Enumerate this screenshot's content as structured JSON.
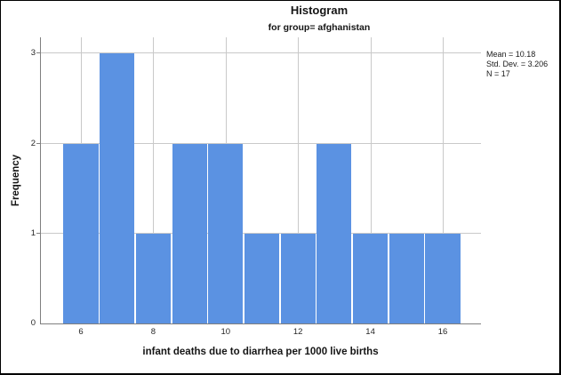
{
  "chart_data": {
    "type": "bar",
    "title": "Histogram",
    "subtitle": "for group= afghanistan",
    "xlabel": "infant deaths due to diarrhea per 1000 live births",
    "ylabel": "Frequency",
    "x": [
      6,
      7,
      8,
      9,
      10,
      11,
      12,
      13,
      14,
      15,
      16
    ],
    "values": [
      2,
      3,
      1,
      2,
      2,
      1,
      1,
      2,
      1,
      1,
      1
    ],
    "bin_width": 1,
    "x_ticks": [
      6,
      8,
      10,
      12,
      14,
      16
    ],
    "y_ticks": [
      0,
      1,
      2,
      3
    ],
    "xlim": [
      4.9,
      17.1
    ],
    "ylim": [
      0,
      3.18
    ],
    "grid": true,
    "legend_position": "none",
    "annotations": [
      "Mean = 10.18",
      "Std. Dev. = 3.206",
      "N = 17"
    ]
  },
  "stats_box": {
    "lines": [
      "Mean = 10.18",
      "Std. Dev. = 3.206",
      "N = 17"
    ]
  },
  "colors": {
    "bar": "#5B92E2",
    "bar_gap": "#FFFFFF",
    "gridline": "#C9C9C9",
    "axis": "#7F7F7F",
    "frame_border": "#000000",
    "background": "#FFFFFF"
  }
}
